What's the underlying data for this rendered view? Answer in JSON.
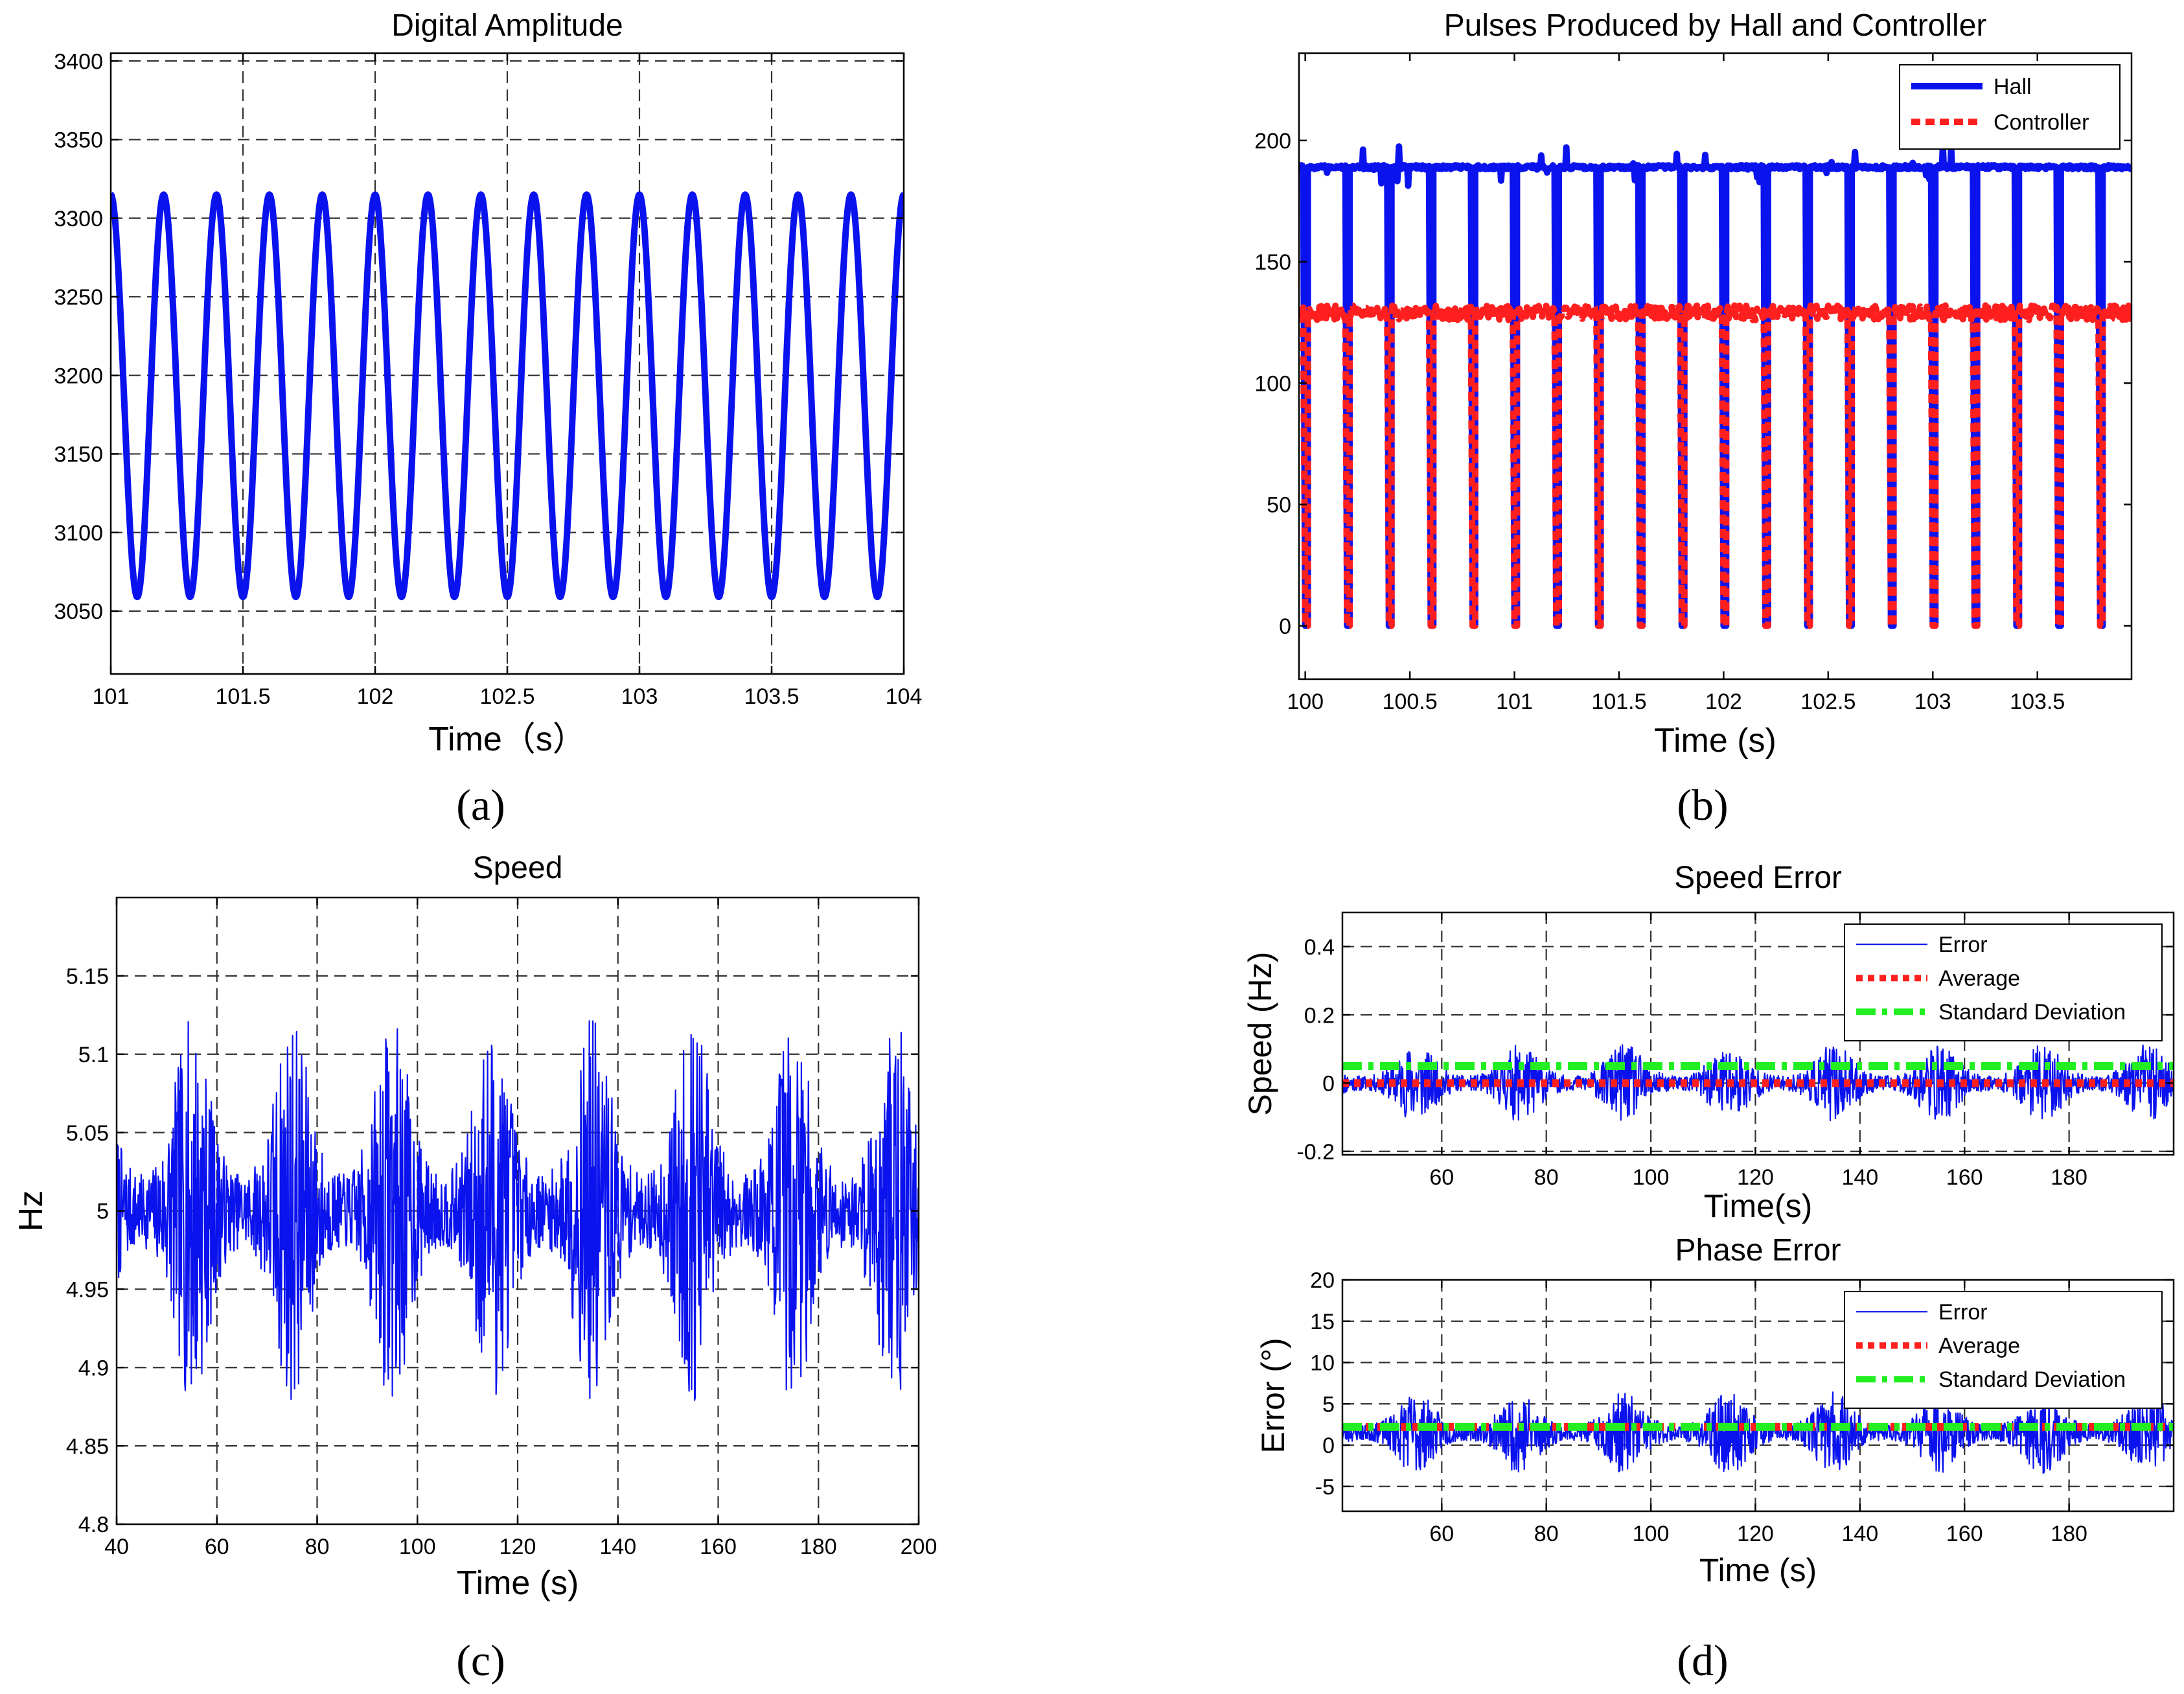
{
  "figure": {
    "panel_labels": [
      "(a)",
      "(b)",
      "(c)",
      "(d)"
    ]
  },
  "colors": {
    "blue": "#0a12ee",
    "red": "#ff1f1f",
    "green": "#22ee22",
    "grid": "#333333",
    "axis": "#000000"
  },
  "chart_data": [
    {
      "id": "a",
      "type": "line",
      "title": "Digital Amplitude",
      "xlabel": "Time（s）",
      "ylabel": "",
      "xlim": [
        101,
        104
      ],
      "ylim": [
        3010,
        3405
      ],
      "xticks": [
        101,
        101.5,
        102,
        102.5,
        103,
        103.5,
        104
      ],
      "xtick_labels": [
        "101",
        "101.5",
        "102",
        "102.5",
        "103",
        "103.5",
        "104"
      ],
      "yticks": [
        3050,
        3100,
        3150,
        3200,
        3250,
        3300,
        3350,
        3400
      ],
      "ytick_labels": [
        "3050",
        "3100",
        "3150",
        "3200",
        "3250",
        "3300",
        "3350",
        "3400"
      ],
      "grid": true,
      "series": [
        {
          "name": "Amplitude",
          "color": "blue",
          "style": "solid",
          "weight": "thick",
          "kind": "sine",
          "center": 3187,
          "amplitude": 128,
          "period": 0.2,
          "phase_t": 101.0,
          "x_start": 101.0,
          "x_end": 104.0
        }
      ]
    },
    {
      "id": "b",
      "type": "line",
      "title": "Pulses Produced by Hall and  Controller",
      "xlabel": "Time (s)",
      "ylabel": "",
      "xlim": [
        99.97,
        103.95
      ],
      "ylim": [
        -22,
        236
      ],
      "xticks": [
        100,
        100.5,
        101,
        101.5,
        102,
        102.5,
        103,
        103.5
      ],
      "xtick_labels": [
        "100",
        "100.5",
        "101",
        "101.5",
        "102",
        "102.5",
        "103",
        "103.5"
      ],
      "yticks": [
        0,
        50,
        100,
        150,
        200
      ],
      "ytick_labels": [
        "0",
        "50",
        "100",
        "150",
        "200"
      ],
      "grid": false,
      "legend": {
        "location": "top-right",
        "entries": [
          "Hall",
          "Controller"
        ]
      },
      "series": [
        {
          "name": "Hall",
          "color": "blue",
          "style": "solid",
          "weight": "thick",
          "kind": "pulses",
          "high": 189,
          "low": 0,
          "period": 0.2,
          "first": 100.0,
          "last": 103.8
        },
        {
          "name": "Controller",
          "color": "red",
          "style": "dashed",
          "weight": "thick",
          "kind": "pulses",
          "high": 129,
          "low": 0,
          "period": 0.2,
          "first": 100.0,
          "last": 103.8
        }
      ]
    },
    {
      "id": "c",
      "type": "line",
      "title": "Speed",
      "xlabel": "Time (s)",
      "ylabel": "Hz",
      "xlim": [
        40,
        200
      ],
      "ylim": [
        4.8,
        5.2
      ],
      "xticks": [
        40,
        60,
        80,
        100,
        120,
        140,
        160,
        180,
        200
      ],
      "xtick_labels": [
        "40",
        "60",
        "80",
        "100",
        "120",
        "140",
        "160",
        "180",
        "200"
      ],
      "yticks": [
        4.8,
        4.85,
        4.9,
        4.95,
        5.0,
        5.05,
        5.1,
        5.15
      ],
      "ytick_labels": [
        "4.8",
        "4.85",
        "4.9",
        "4.95",
        "5",
        "5.05",
        "5.1",
        "5.15"
      ],
      "grid": true,
      "series": [
        {
          "name": "Speed",
          "color": "blue",
          "style": "solid",
          "weight": "thin",
          "kind": "noise",
          "center": 5.0,
          "spread": 0.125,
          "burst_period": 20,
          "burst_center": 55,
          "x_start": 40,
          "x_end": 200,
          "seed": 7
        }
      ]
    },
    {
      "id": "d1",
      "type": "line",
      "title": "Speed Error",
      "xlabel": "Time(s)",
      "ylabel": "Speed (Hz)",
      "xlim": [
        41,
        200
      ],
      "ylim": [
        -0.21,
        0.5
      ],
      "xticks": [
        60,
        80,
        100,
        120,
        140,
        160,
        180
      ],
      "xtick_labels": [
        "60",
        "80",
        "100",
        "120",
        "140",
        "160",
        "180"
      ],
      "yticks": [
        -0.2,
        0,
        0.2,
        0.4
      ],
      "ytick_labels": [
        "-0.2",
        "0",
        "0.2",
        "0.4"
      ],
      "grid": true,
      "legend": {
        "location": "top-right",
        "entries": [
          "Error",
          "Average",
          "Standard Deviation"
        ]
      },
      "series": [
        {
          "name": "Error",
          "color": "blue",
          "style": "solid",
          "weight": "thin",
          "kind": "noise",
          "center": 0.0,
          "spread": 0.115,
          "burst_period": 20,
          "burst_center": 55,
          "x_start": 41,
          "x_end": 200,
          "seed": 11
        },
        {
          "name": "Average",
          "color": "red",
          "style": "dotted",
          "weight": "heavy",
          "kind": "constant",
          "value": 0.0
        },
        {
          "name": "Standard Deviation",
          "color": "green",
          "style": "dashdot",
          "weight": "heavy",
          "kind": "constant",
          "value": 0.05
        }
      ]
    },
    {
      "id": "d2",
      "type": "line",
      "title": "Phase Error",
      "xlabel": "Time (s)",
      "ylabel": "Error (°)",
      "xlim": [
        41,
        200
      ],
      "ylim": [
        -8,
        20
      ],
      "xticks": [
        60,
        80,
        100,
        120,
        140,
        160,
        180
      ],
      "xtick_labels": [
        "60",
        "80",
        "100",
        "120",
        "140",
        "160",
        "180"
      ],
      "yticks": [
        -5,
        0,
        5,
        10,
        15,
        20
      ],
      "ytick_labels": [
        "-5",
        "0",
        "5",
        "10",
        "15",
        "20"
      ],
      "grid": true,
      "legend": {
        "location": "top-right",
        "entries": [
          "Error",
          "Average",
          "Standard Deviation"
        ]
      },
      "series": [
        {
          "name": "Error",
          "color": "blue",
          "style": "solid",
          "weight": "thin",
          "kind": "noise",
          "center": 1.5,
          "spread": 5.0,
          "burst_period": 20,
          "burst_center": 55,
          "x_start": 41,
          "x_end": 200,
          "seed": 23
        },
        {
          "name": "Average",
          "color": "red",
          "style": "dotted",
          "weight": "heavy",
          "kind": "constant",
          "value": 2.2
        },
        {
          "name": "Standard Deviation",
          "color": "green",
          "style": "dashdot",
          "weight": "heavy",
          "kind": "constant",
          "value": 2.2
        }
      ]
    }
  ]
}
